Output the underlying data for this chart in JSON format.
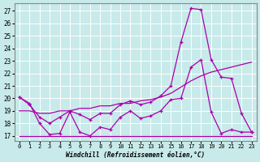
{
  "xlabel": "Windchill (Refroidissement éolien,°C)",
  "background_color": "#c8eaea",
  "line_color": "#aa00aa",
  "xticks": [
    0,
    1,
    2,
    3,
    4,
    5,
    6,
    7,
    8,
    9,
    10,
    11,
    12,
    13,
    14,
    15,
    16,
    17,
    18,
    19,
    20,
    21,
    22,
    23
  ],
  "yticks": [
    17,
    18,
    19,
    20,
    21,
    22,
    23,
    24,
    25,
    26,
    27
  ],
  "xlim": [
    -0.5,
    23.5
  ],
  "ylim": [
    16.6,
    27.6
  ],
  "line1_x": [
    0,
    1,
    2,
    3,
    4,
    5,
    6,
    7,
    8,
    9,
    10,
    11,
    12,
    13,
    14,
    15,
    16,
    17,
    18,
    19,
    20,
    21,
    22,
    23
  ],
  "line1_y": [
    20.1,
    19.6,
    18.0,
    17.1,
    17.2,
    18.9,
    17.3,
    17.0,
    17.7,
    17.5,
    18.5,
    19.0,
    18.4,
    18.6,
    19.0,
    19.9,
    20.0,
    22.5,
    23.1,
    18.9,
    17.2,
    17.5,
    17.3,
    17.3
  ],
  "line2_x": [
    0,
    1,
    2,
    3,
    4,
    5,
    6,
    7,
    8,
    9,
    10,
    11,
    12,
    13,
    14,
    15,
    16,
    17,
    18,
    19,
    20,
    21,
    22,
    23
  ],
  "line2_y": [
    17.0,
    17.0,
    17.0,
    17.0,
    17.0,
    17.0,
    17.0,
    17.0,
    17.0,
    17.0,
    17.0,
    17.0,
    17.0,
    17.0,
    17.0,
    17.0,
    17.0,
    17.0,
    17.0,
    17.0,
    17.0,
    17.0,
    17.0,
    17.0
  ],
  "line3_x": [
    0,
    1,
    2,
    3,
    4,
    5,
    6,
    7,
    8,
    9,
    10,
    11,
    12,
    13,
    14,
    15,
    16,
    17,
    18,
    19,
    20,
    21,
    22,
    23
  ],
  "line3_y": [
    19.0,
    19.0,
    18.8,
    18.8,
    19.0,
    19.0,
    19.2,
    19.2,
    19.4,
    19.4,
    19.6,
    19.6,
    19.8,
    19.9,
    20.1,
    20.4,
    20.9,
    21.4,
    21.8,
    22.1,
    22.3,
    22.5,
    22.7,
    22.9
  ],
  "line4_x": [
    0,
    1,
    2,
    3,
    4,
    5,
    6,
    7,
    8,
    9,
    10,
    11,
    12,
    13,
    14,
    15,
    16,
    17,
    18,
    19,
    20,
    21,
    22,
    23
  ],
  "line4_y": [
    20.1,
    19.5,
    18.5,
    18.0,
    18.5,
    19.0,
    18.7,
    18.3,
    18.8,
    18.8,
    19.5,
    19.8,
    19.5,
    19.7,
    20.2,
    21.0,
    24.5,
    27.2,
    27.1,
    23.1,
    21.7,
    21.6,
    18.8,
    17.3
  ]
}
